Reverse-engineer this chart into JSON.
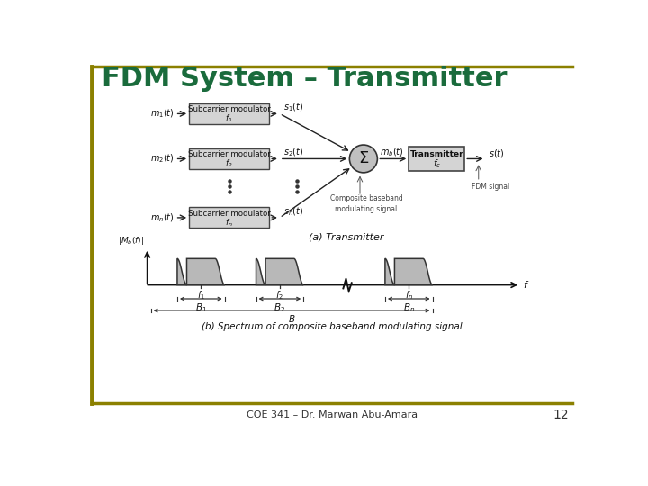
{
  "title": "FDM System – Transmitter",
  "title_color": "#1a6b3c",
  "title_fontsize": 22,
  "bg_color": "#ffffff",
  "border_color": "#8B8000",
  "footer_text": "COE 341 – Dr. Marwan Abu-Amara",
  "footer_number": "12",
  "caption_a": "(a) Transmitter",
  "caption_b": "(b) Spectrum of composite baseband modulating signal",
  "box_fill": "#d4d4d4",
  "box_edge": "#444444",
  "sigma_fill": "#c0c0c0",
  "transmitter_fill": "#d4d4d4",
  "hump_fill": "#b8b8b8",
  "hump_edge": "#333333"
}
